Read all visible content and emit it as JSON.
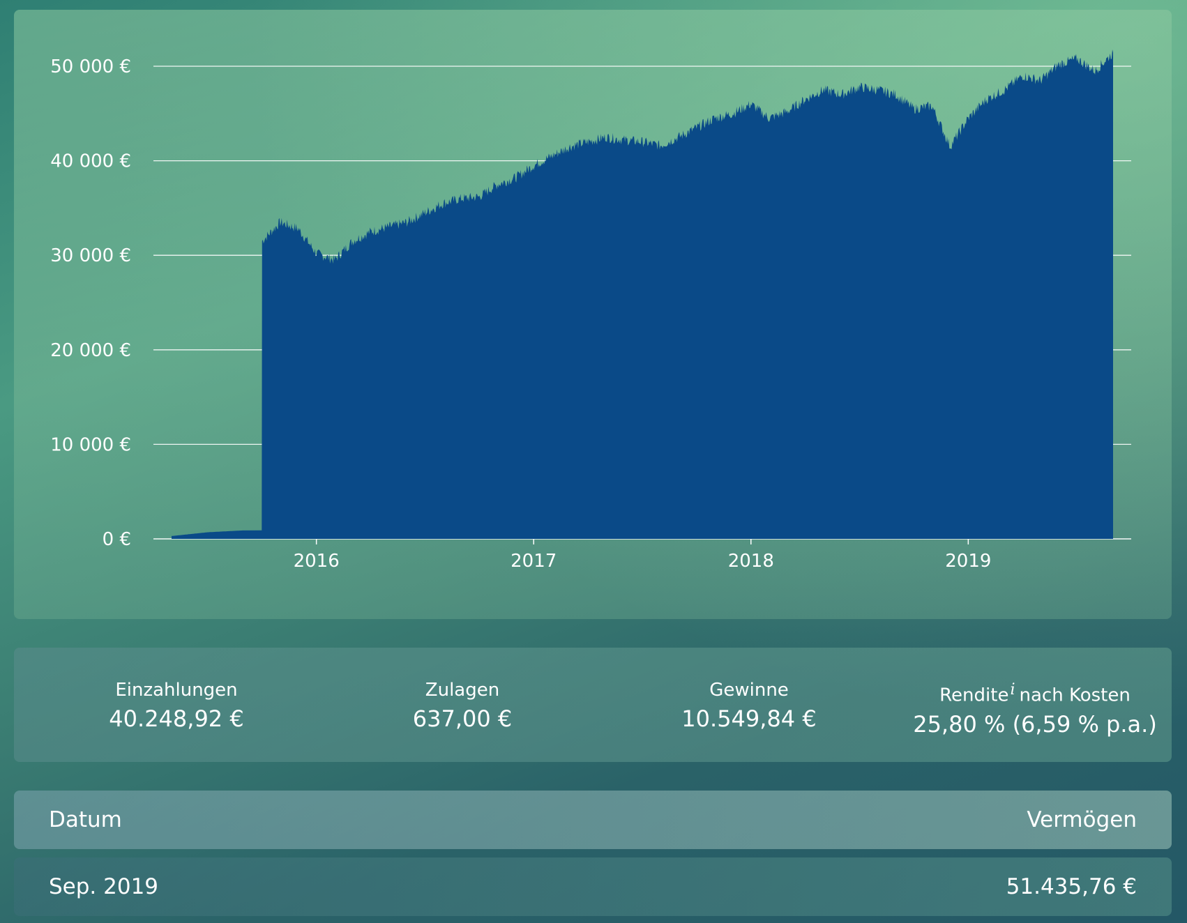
{
  "chart_data": {
    "type": "area",
    "xlabel": "",
    "ylabel": "",
    "x_tick_labels": [
      "2016",
      "2017",
      "2018",
      "2019"
    ],
    "y_tick_labels": [
      "0 €",
      "10 000 €",
      "20 000 €",
      "30 000 €",
      "40 000 €",
      "50 000 €"
    ],
    "ylim": [
      0,
      50000
    ],
    "xlim": [
      "2015-04",
      "2019-10"
    ],
    "grid": true,
    "colors": {
      "fill": "#0a4a88",
      "grid": "#ffffff"
    },
    "series": [
      {
        "x": [
          "2015-05",
          "2015-06",
          "2015-07",
          "2015-08",
          "2015-09",
          "2015-10",
          "2015-11",
          "2015-12",
          "2016-01",
          "2016-02",
          "2016-03",
          "2016-04",
          "2016-05",
          "2016-06",
          "2016-07",
          "2016-08",
          "2016-09",
          "2016-10",
          "2016-11",
          "2016-12",
          "2017-01",
          "2017-02",
          "2017-03",
          "2017-04",
          "2017-05",
          "2017-06",
          "2017-07",
          "2017-08",
          "2017-09",
          "2017-10",
          "2017-11",
          "2017-12",
          "2018-01",
          "2018-02",
          "2018-03",
          "2018-04",
          "2018-05",
          "2018-06",
          "2018-07",
          "2018-08",
          "2018-09",
          "2018-10",
          "2018-11",
          "2018-12",
          "2019-01",
          "2019-02",
          "2019-03",
          "2019-04",
          "2019-05",
          "2019-06",
          "2019-07",
          "2019-08",
          "2019-09"
        ],
        "y": [
          300,
          500,
          700,
          800,
          900,
          31500,
          33500,
          32800,
          30200,
          29500,
          31500,
          32500,
          33000,
          33500,
          34500,
          35500,
          36000,
          36200,
          37500,
          38200,
          39500,
          40500,
          41500,
          42000,
          42500,
          42200,
          42000,
          41600,
          42500,
          43500,
          44500,
          45000,
          46000,
          44500,
          45200,
          46500,
          47500,
          47000,
          47800,
          47500,
          47000,
          45500,
          45800,
          41500,
          44500,
          46500,
          47500,
          49000,
          48500,
          50200,
          50800,
          49500,
          51435.76
        ]
      }
    ]
  },
  "stats": {
    "deposits": {
      "label": "Einzahlungen",
      "value": "40.248,92 €"
    },
    "allowances": {
      "label": "Zulagen",
      "value": "637,00 €"
    },
    "gains": {
      "label": "Gewinne",
      "value": "10.549,84 €"
    },
    "return": {
      "label": "Rendite",
      "info_icon": "i",
      "label_suffix": "nach Kosten",
      "value": "25,80 % (6,59 % p.a.)"
    }
  },
  "table": {
    "headers": {
      "date": "Datum",
      "assets": "Vermögen"
    },
    "rows": [
      {
        "date": "Sep. 2019",
        "assets": "51.435,76 €"
      }
    ]
  }
}
